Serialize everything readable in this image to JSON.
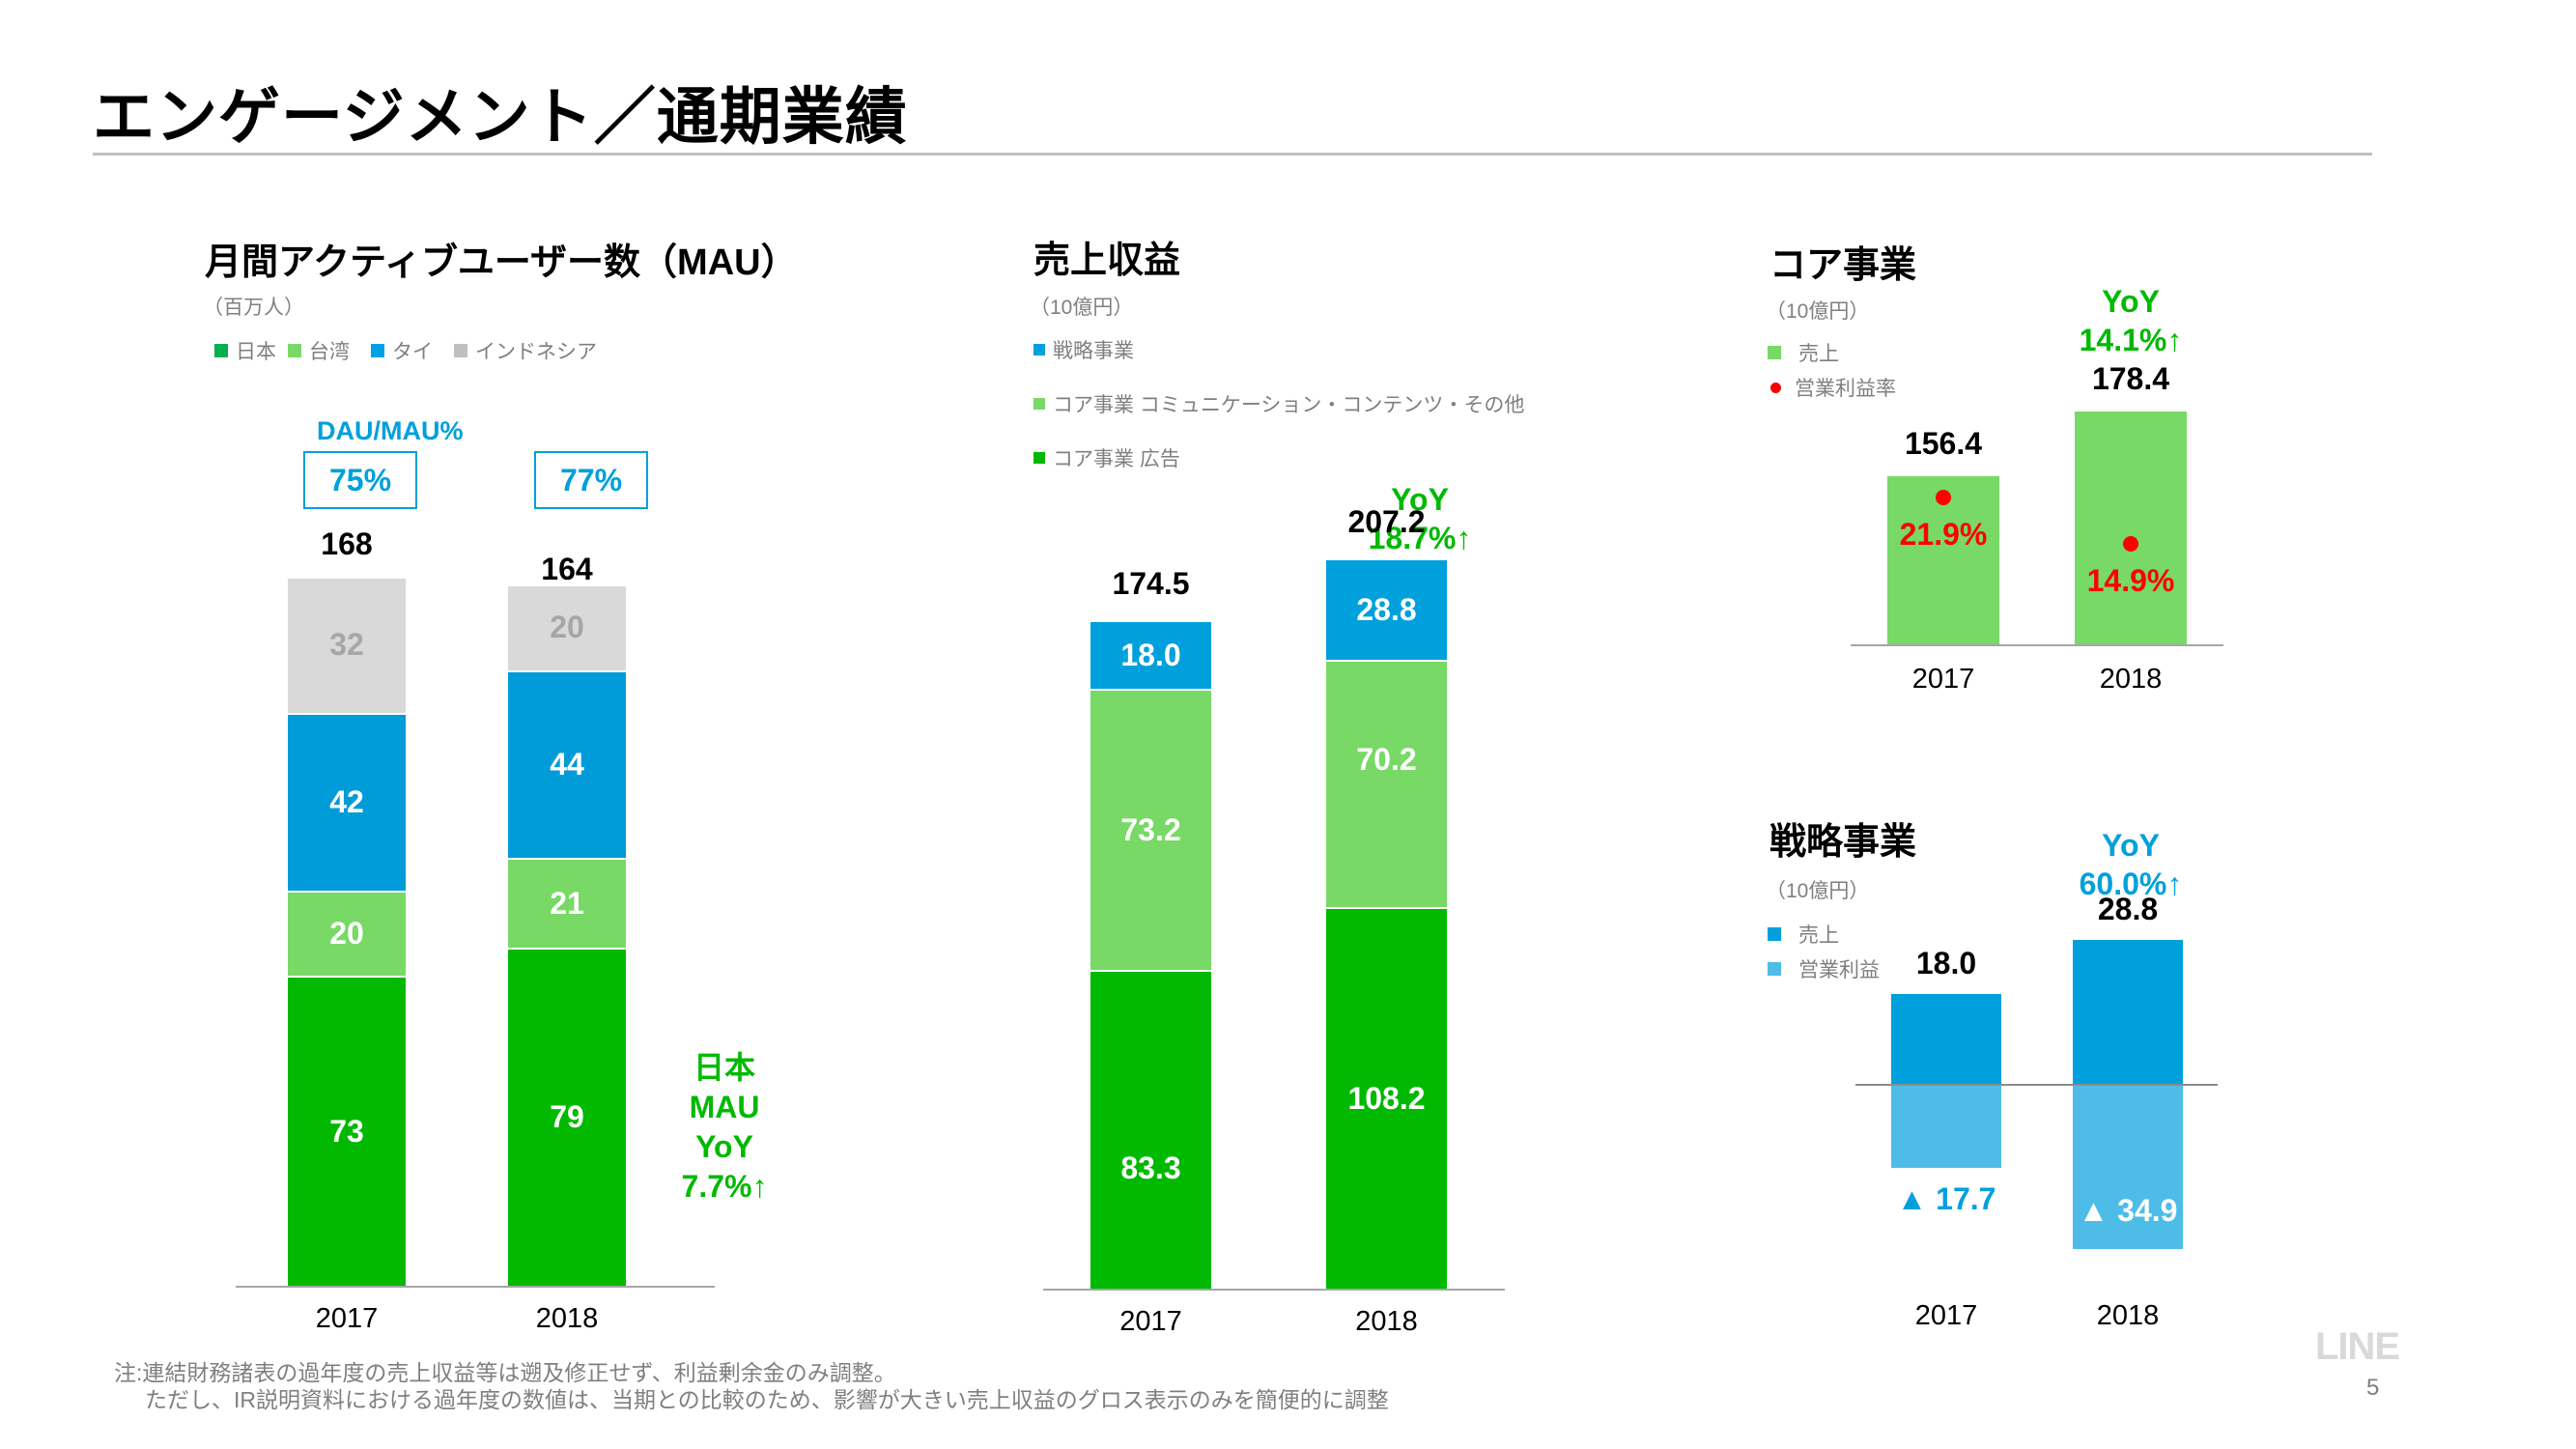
{
  "page": {
    "title": "エンゲージメント／通期業績",
    "logo": "LINE",
    "page_number": "5",
    "footnotes": [
      "注:連結財務諸表の過年度の売上収益等は遡及修正せず、利益剰余金のみ調整。",
      "ただし、IR説明資料における過年度の数値は、当期との比較のため、影響が大きい売上収益のグロス表示のみを簡便的に調整"
    ]
  },
  "colors": {
    "japan": "#00b900",
    "taiwan": "#78d966",
    "thailand": "#009bd9",
    "indonesia": "#d9d9d9",
    "strategic": "#00a0dc",
    "core_comm": "#78d966",
    "core_ad": "#00b900",
    "strategic_loss": "#4dbde8",
    "yoy_green": "#00b900",
    "yoy_blue": "#00a0dc",
    "margin_red": "#ff0000"
  },
  "chart_data": [
    {
      "id": "mau",
      "type": "bar",
      "stacked": true,
      "title": "月間アクティブユーザー数（MAU）",
      "unit": "（百万人）",
      "categories": [
        "2017",
        "2018"
      ],
      "series": [
        {
          "name": "日本",
          "values": [
            73,
            79
          ]
        },
        {
          "name": "台湾",
          "values": [
            20,
            21
          ]
        },
        {
          "name": "タイ",
          "values": [
            42,
            44
          ]
        },
        {
          "name": "インドネシア",
          "values": [
            32,
            20
          ]
        }
      ],
      "totals": [
        "168",
        "164"
      ],
      "dau_mau_label": "DAU/MAU%",
      "dau_mau": [
        "75%",
        "77%"
      ],
      "annotation": [
        "日本",
        "MAU",
        "YoY",
        "7.7%↑"
      ],
      "legend_position": "top-left"
    },
    {
      "id": "revenue",
      "type": "bar",
      "stacked": true,
      "title": "売上収益",
      "unit": "（10億円）",
      "categories": [
        "2017",
        "2018"
      ],
      "series": [
        {
          "name": "コア事業 広告",
          "values": [
            83.3,
            108.2
          ]
        },
        {
          "name": "コア事業 コミュニケーション・コンテンツ・その他",
          "values": [
            73.2,
            70.2
          ]
        },
        {
          "name": "戦略事業",
          "values": [
            18.0,
            28.8
          ]
        }
      ],
      "legend_order": [
        "戦略事業",
        "コア事業 コミュニケーション・コンテンツ・その他",
        "コア事業 広告"
      ],
      "totals": [
        "174.5",
        "207.2"
      ],
      "yoy": [
        "YoY",
        "18.7%↑"
      ],
      "legend_position": "top-left"
    },
    {
      "id": "core",
      "type": "bar",
      "title": "コア事業",
      "unit": "（10億円）",
      "categories": [
        "2017",
        "2018"
      ],
      "series": [
        {
          "name": "売上",
          "values": [
            156.4,
            178.4
          ]
        },
        {
          "name": "営業利益率",
          "values": [
            21.9,
            14.9
          ],
          "format": "percent",
          "marker": "dot"
        }
      ],
      "value_labels": [
        "156.4",
        "178.4"
      ],
      "margin_labels": [
        "21.9%",
        "14.9%"
      ],
      "yoy": [
        "YoY",
        "14.1%↑"
      ],
      "legend_position": "top-left"
    },
    {
      "id": "strategic",
      "type": "bar",
      "title": "戦略事業",
      "unit": "（10億円）",
      "categories": [
        "2017",
        "2018"
      ],
      "series": [
        {
          "name": "売上",
          "values": [
            18.0,
            28.8
          ]
        },
        {
          "name": "営業利益",
          "values": [
            -17.7,
            -34.9
          ]
        }
      ],
      "value_labels": [
        "18.0",
        "28.8"
      ],
      "loss_labels": [
        "▲ 17.7",
        "▲ 34.9"
      ],
      "yoy": [
        "YoY",
        "60.0%↑"
      ],
      "legend_position": "top-left"
    }
  ]
}
